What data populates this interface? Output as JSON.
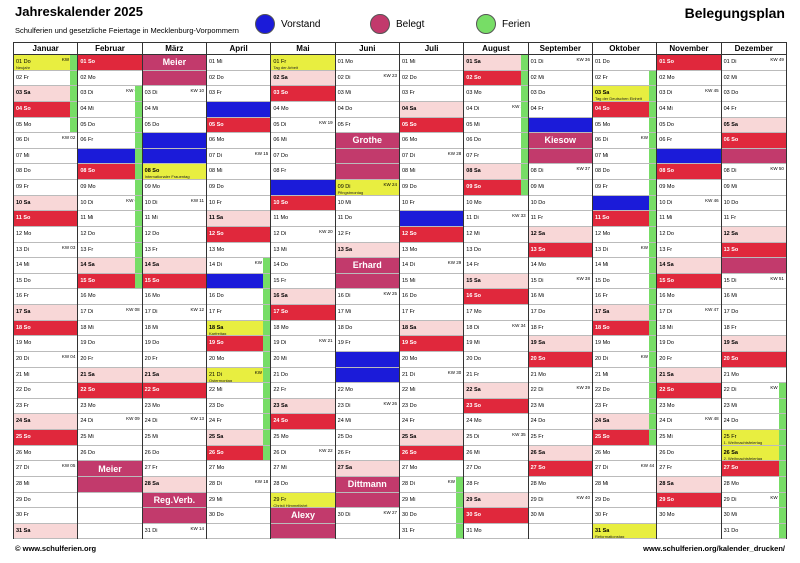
{
  "header": {
    "title": "Jahreskalender 2025",
    "subtitle": "Schulferien und gesetzliche Feiertage in Mecklenburg-Vorpommern",
    "right_title": "Belegungsplan"
  },
  "legend": [
    {
      "label": "Vorstand",
      "color": "#1b1bd9"
    },
    {
      "label": "Belegt",
      "color": "#c23a6c"
    },
    {
      "label": "Ferien",
      "color": "#77dd66"
    }
  ],
  "footer": {
    "left": "© www.schulferien.org",
    "right": "www.schulferien.org/kalender_drucken/"
  },
  "months": [
    {
      "name": "Januar",
      "days": 31,
      "start": 3,
      "kw": {
        "1": "KW 01",
        "6": "KW 02",
        "13": "KW 03",
        "20": "KW 04",
        "27": "KW 05"
      },
      "holidays": {
        "1": "Neujahr"
      },
      "fer": [
        1,
        2,
        3,
        4,
        5
      ],
      "bel": [],
      "vor": [],
      "notes": []
    },
    {
      "name": "Februar",
      "days": 28,
      "start": 6,
      "kw": {
        "3": "KW 06",
        "10": "KW 07",
        "17": "KW 08",
        "24": "KW 09"
      },
      "holidays": {},
      "fer": [
        3,
        4,
        5,
        6,
        7,
        8,
        9,
        10,
        11,
        12,
        13,
        14,
        15
      ],
      "bel": [
        27,
        28
      ],
      "vor": [
        7
      ],
      "notes": [
        {
          "day": 27,
          "label": "Meier"
        }
      ]
    },
    {
      "name": "März",
      "days": 31,
      "start": 6,
      "kw": {
        "3": "KW 10",
        "10": "KW 11",
        "17": "KW 12",
        "24": "KW 13",
        "31": "KW 14"
      },
      "holidays": {
        "8": "Internationaler Frauentag"
      },
      "fer": [],
      "bel": [
        1,
        2,
        29,
        30
      ],
      "vor": [
        6,
        7
      ],
      "notes": [
        {
          "day": 1,
          "label": "Meier"
        },
        {
          "day": 29,
          "label": "Reg.Verb."
        }
      ]
    },
    {
      "name": "April",
      "days": 30,
      "start": 2,
      "kw": {
        "7": "KW 15",
        "14": "KW 16",
        "21": "KW 17",
        "28": "KW 18"
      },
      "holidays": {
        "18": "Karfreitag",
        "21": "Ostermontag"
      },
      "fer": [
        14,
        15,
        16,
        17,
        18,
        19,
        20,
        21,
        22,
        23,
        24,
        25,
        26
      ],
      "bel": [],
      "vor": [
        4,
        15
      ],
      "notes": []
    },
    {
      "name": "Mai",
      "days": 31,
      "start": 4,
      "kw": {
        "5": "KW 19",
        "12": "KW 20",
        "19": "KW 21",
        "26": "KW 22"
      },
      "holidays": {
        "1": "Tag der Arbeit",
        "29": "Christi Himmelfahrt"
      },
      "fer": [],
      "bel": [
        30,
        31
      ],
      "vor": [
        9
      ],
      "notes": [
        {
          "day": 30,
          "label": "Alexy"
        }
      ]
    },
    {
      "name": "Juni",
      "days": 30,
      "start": 0,
      "kw": {
        "2": "KW 23",
        "9": "KW 24",
        "16": "KW 25",
        "23": "KW 26",
        "30": "KW 27"
      },
      "holidays": {
        "9": "Pfingstmontag"
      },
      "fer": [],
      "bel": [
        6,
        7,
        8,
        14,
        15,
        28,
        29
      ],
      "vor": [
        20,
        21
      ],
      "notes": [
        {
          "day": 6,
          "label": "Grothe"
        },
        {
          "day": 14,
          "label": "Erhard"
        },
        {
          "day": 28,
          "label": "Dittmann"
        }
      ]
    },
    {
      "name": "Juli",
      "days": 31,
      "start": 2,
      "kw": {
        "7": "KW 28",
        "14": "KW 29",
        "21": "KW 30",
        "28": "KW 31"
      },
      "holidays": {},
      "fer": [
        28,
        29,
        30,
        31
      ],
      "bel": [],
      "vor": [
        11
      ],
      "notes": []
    },
    {
      "name": "August",
      "days": 31,
      "start": 5,
      "kw": {
        "4": "KW 32",
        "11": "KW 33",
        "18": "KW 34",
        "25": "KW 35"
      },
      "holidays": {},
      "fer": [
        1,
        2,
        3,
        4,
        5,
        6,
        7,
        8,
        9
      ],
      "bel": [],
      "vor": [],
      "notes": []
    },
    {
      "name": "September",
      "days": 30,
      "start": 1,
      "kw": {
        "1": "KW 36",
        "8": "KW 37",
        "15": "KW 38",
        "22": "KW 39",
        "29": "KW 40"
      },
      "holidays": {},
      "fer": [],
      "bel": [
        6,
        7
      ],
      "vor": [
        5
      ],
      "notes": [
        {
          "day": 6,
          "label": "Kiesow"
        }
      ]
    },
    {
      "name": "Oktober",
      "days": 31,
      "start": 3,
      "kw": {
        "6": "KW 41",
        "13": "KW 42",
        "20": "KW 43",
        "27": "KW 44"
      },
      "holidays": {
        "3": "Tag der Deutschen Einheit",
        "31": "Reformationstag"
      },
      "fer": [
        2,
        3,
        4,
        5,
        6,
        7,
        8,
        9,
        10,
        11,
        12,
        13,
        14,
        15,
        16,
        17,
        18,
        19,
        20,
        21,
        22,
        23,
        24,
        25
      ],
      "bel": [],
      "vor": [
        10
      ],
      "notes": []
    },
    {
      "name": "November",
      "days": 30,
      "start": 6,
      "kw": {
        "3": "KW 45",
        "10": "KW 46",
        "17": "KW 47",
        "24": "KW 48"
      },
      "holidays": {},
      "fer": [],
      "bel": [],
      "vor": [
        7
      ],
      "notes": []
    },
    {
      "name": "Dezember",
      "days": 31,
      "start": 1,
      "kw": {
        "1": "KW 49",
        "8": "KW 50",
        "15": "KW 51",
        "22": "KW 52",
        "29": "KW 01"
      },
      "holidays": {
        "25": "1. Weihnachtsfeiertag",
        "26": "2. Weihnachtsfeiertag"
      },
      "fer": [
        22,
        23,
        24,
        25,
        26,
        27,
        28,
        29,
        30,
        31
      ],
      "bel": [
        7,
        14
      ],
      "vor": [],
      "notes": []
    }
  ],
  "weekdays": [
    "Mo",
    "Di",
    "Mi",
    "Do",
    "Fr",
    "Sa",
    "So"
  ]
}
